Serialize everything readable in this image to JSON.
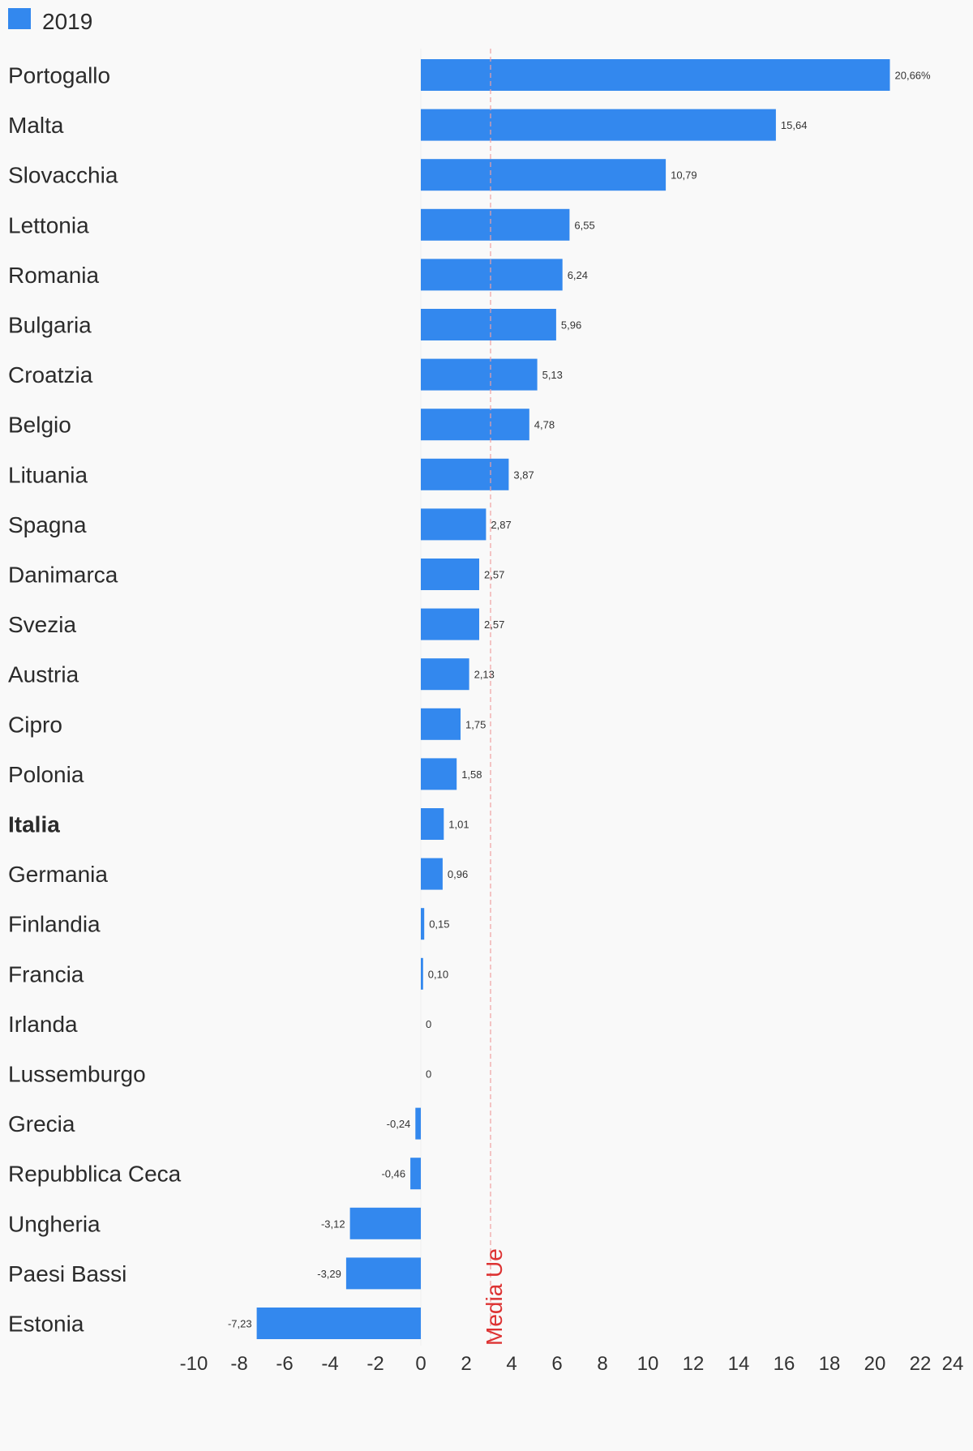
{
  "chart_data": {
    "type": "bar",
    "orientation": "horizontal",
    "legend": {
      "position": "top-left",
      "entries": [
        "2019"
      ]
    },
    "series": [
      {
        "name": "2019",
        "color": "#3388ee",
        "values": [
          20.66,
          15.64,
          10.79,
          6.55,
          6.24,
          5.96,
          5.13,
          4.78,
          3.87,
          2.87,
          2.57,
          2.57,
          2.13,
          1.75,
          1.58,
          1.01,
          0.96,
          0.15,
          0.1,
          0,
          0,
          -0.24,
          -0.46,
          -3.12,
          -3.29,
          -7.23
        ],
        "value_labels": [
          "20,66%",
          "15,64",
          "10,79",
          "6,55",
          "6,24",
          "5,96",
          "5,13",
          "4,78",
          "3,87",
          "2,87",
          "2,57",
          "2,57",
          "2,13",
          "1,75",
          "1,58",
          "1,01",
          "0,96",
          "0,15",
          "0,10",
          "0",
          "0",
          "-0,24",
          "-0,46",
          "-3,12",
          "-3,29",
          "-7,23"
        ]
      }
    ],
    "categories": [
      "Portogallo",
      "Malta",
      "Slovacchia",
      "Lettonia",
      "Romania",
      "Bulgaria",
      "Croatzia",
      "Belgio",
      "Lituania",
      "Spagna",
      "Danimarca",
      "Svezia",
      "Austria",
      "Cipro",
      "Polonia",
      "Italia",
      "Germania",
      "Finlandia",
      "Francia",
      "Irlanda",
      "Lussemburgo",
      "Grecia",
      "Repubblica Ceca",
      "Ungheria",
      "Paesi Bassi",
      "Estonia"
    ],
    "highlighted_category": "Italia",
    "xlim": [
      -10,
      24
    ],
    "x_ticks": [
      -10,
      -8,
      -6,
      -4,
      -2,
      0,
      2,
      4,
      6,
      8,
      10,
      12,
      14,
      16,
      18,
      20,
      22,
      24
    ],
    "grid": false,
    "reference_line": {
      "value": 3.07,
      "label": "Media Ue",
      "color": "#dd3333"
    }
  }
}
